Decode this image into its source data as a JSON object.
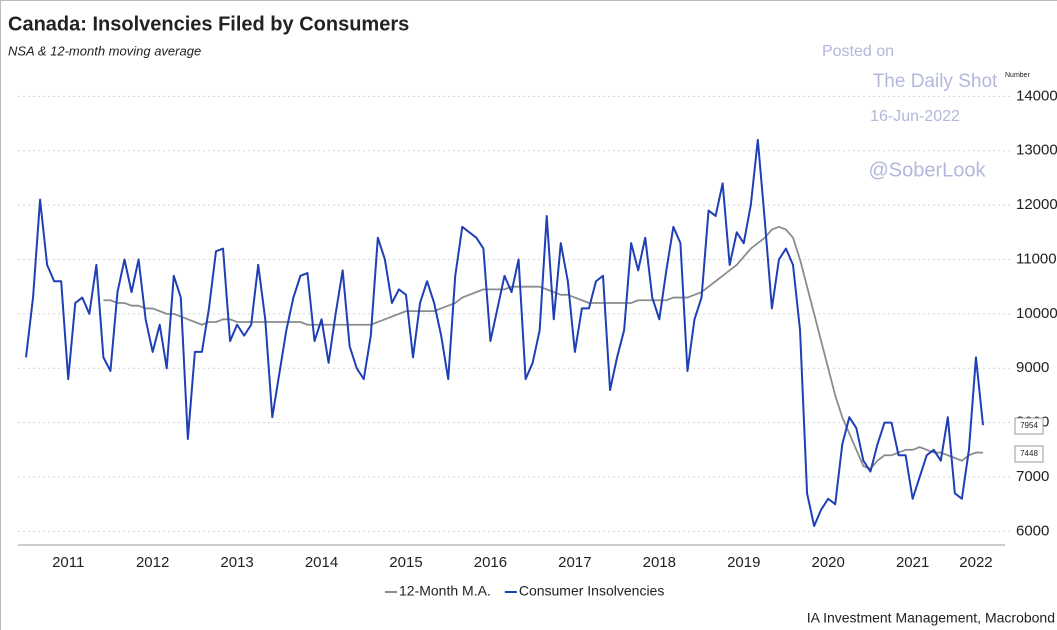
{
  "chart_data": {
    "type": "line",
    "title": "Canada: Insolvencies Filed by Consumers",
    "subtitle": "NSA & 12-month moving average",
    "y_label": "Number",
    "watermark": [
      "Posted on",
      "The Daily Shot",
      "16-Jun-2022",
      "@SoberLook"
    ],
    "source": "IA Investment Management, Macrobond",
    "categories": [
      null,
      null,
      null,
      null,
      null,
      null,
      "2011",
      null,
      null,
      null,
      null,
      null,
      null,
      null,
      null,
      null,
      null,
      null,
      "2012",
      null,
      null,
      null,
      null,
      null,
      null,
      null,
      null,
      null,
      null,
      null,
      "2013",
      null,
      null,
      null,
      null,
      null,
      null,
      null,
      null,
      null,
      null,
      null,
      "2014",
      null,
      null,
      null,
      null,
      null,
      null,
      null,
      null,
      null,
      null,
      null,
      "2015",
      null,
      null,
      null,
      null,
      null,
      null,
      null,
      null,
      null,
      null,
      null,
      "2016",
      null,
      null,
      null,
      null,
      null,
      null,
      null,
      null,
      null,
      null,
      null,
      "2017",
      null,
      null,
      null,
      null,
      null,
      null,
      null,
      null,
      null,
      null,
      null,
      "2018",
      null,
      null,
      null,
      null,
      null,
      null,
      null,
      null,
      null,
      null,
      null,
      "2019",
      null,
      null,
      null,
      null,
      null,
      null,
      null,
      null,
      null,
      null,
      null,
      "2020",
      null,
      null,
      null,
      null,
      null,
      null,
      null,
      null,
      null,
      null,
      null,
      "2021",
      null,
      null,
      null,
      null,
      null,
      null,
      null,
      null,
      "2022",
      null
    ],
    "series": [
      {
        "name": "12-Month M.A.",
        "color": "#8c8c8c",
        "values": [
          null,
          null,
          null,
          null,
          null,
          null,
          null,
          null,
          null,
          null,
          null,
          10250,
          10250,
          10200,
          10200,
          10150,
          10150,
          10100,
          10100,
          10050,
          10000,
          10000,
          9950,
          9900,
          9850,
          9800,
          9850,
          9850,
          9900,
          9900,
          9850,
          9850,
          9850,
          9850,
          9850,
          9850,
          9850,
          9850,
          9850,
          9850,
          9800,
          9800,
          9800,
          9800,
          9800,
          9800,
          9800,
          9800,
          9800,
          9800,
          9850,
          9900,
          9950,
          10000,
          10050,
          10050,
          10050,
          10050,
          10050,
          10100,
          10150,
          10200,
          10300,
          10350,
          10400,
          10450,
          10450,
          10450,
          10450,
          10500,
          10500,
          10500,
          10500,
          10500,
          10450,
          10400,
          10350,
          10350,
          10300,
          10250,
          10200,
          10200,
          10200,
          10200,
          10200,
          10200,
          10200,
          10250,
          10250,
          10250,
          10250,
          10250,
          10300,
          10300,
          10300,
          10350,
          10400,
          10500,
          10600,
          10700,
          10800,
          10900,
          11050,
          11200,
          11300,
          11400,
          11550,
          11600,
          11550,
          11400,
          11000,
          10500,
          10000,
          9500,
          9000,
          8500,
          8100,
          7800,
          7500,
          7200,
          7150,
          7300,
          7400,
          7400,
          7450,
          7500,
          7500,
          7550,
          7500,
          7450,
          7450,
          7400,
          7350,
          7300,
          7400,
          7450,
          7448
        ]
      },
      {
        "name": "Consumer Insolvencies",
        "color": "#1f3fb4",
        "values": [
          9200,
          10300,
          12100,
          10900,
          10600,
          10600,
          8800,
          10200,
          10300,
          10000,
          10900,
          9200,
          8950,
          10400,
          11000,
          10400,
          11000,
          9900,
          9300,
          9800,
          9000,
          10700,
          10300,
          7700,
          9300,
          9300,
          10100,
          11150,
          11200,
          9500,
          9800,
          9600,
          9800,
          10900,
          9900,
          8100,
          8900,
          9700,
          10300,
          10700,
          10750,
          9500,
          9900,
          9100,
          10000,
          10800,
          9400,
          9000,
          8800,
          9600,
          11400,
          11000,
          10200,
          10450,
          10350,
          9200,
          10200,
          10600,
          10200,
          9600,
          8800,
          10700,
          11600,
          11500,
          11400,
          11200,
          9500,
          10100,
          10700,
          10400,
          11000,
          8800,
          9100,
          9700,
          11800,
          9900,
          11300,
          10600,
          9300,
          10100,
          10100,
          10600,
          10700,
          8600,
          9200,
          9700,
          11300,
          10800,
          11400,
          10300,
          9900,
          10800,
          11600,
          11300,
          8950,
          9900,
          10300,
          11900,
          11800,
          12400,
          10900,
          11500,
          11300,
          12000,
          13200,
          11700,
          10100,
          11000,
          11200,
          10900,
          9700,
          6700,
          6100,
          6400,
          6600,
          6500,
          7600,
          8100,
          7900,
          7300,
          7100,
          7600,
          8000,
          8000,
          7400,
          7400,
          6600,
          7000,
          7400,
          7500,
          7300,
          8100,
          6700,
          6600,
          7500,
          9200,
          7954
        ]
      }
    ],
    "ylim": [
      5750,
      14300
    ],
    "yticks": [
      6000,
      7000,
      8000,
      9000,
      10000,
      11000,
      12000,
      13000,
      14000
    ],
    "grid": true
  }
}
